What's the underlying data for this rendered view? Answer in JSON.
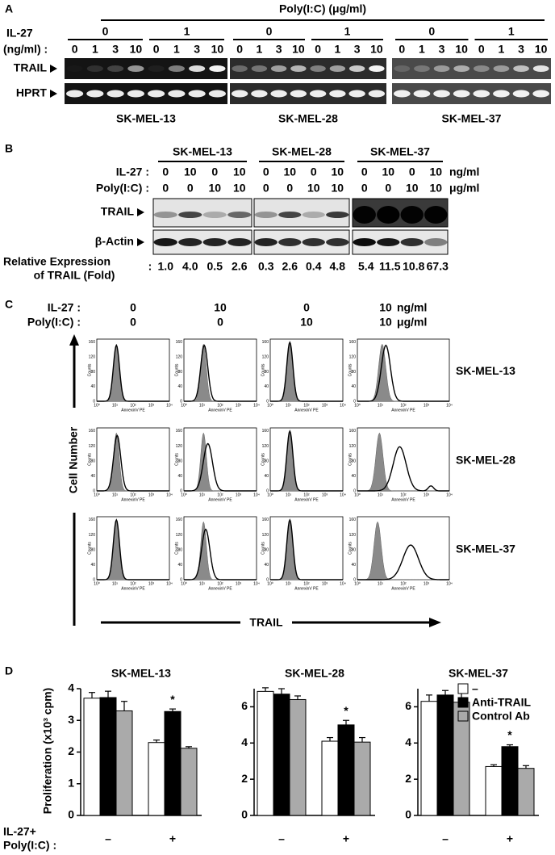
{
  "panel_a": {
    "letter": "A",
    "poly_label": "Poly(I:C) (μg/ml)",
    "il27_label": [
      "IL-27",
      "(ng/ml) :"
    ],
    "doses": [
      0,
      1,
      3,
      10
    ],
    "rows": [
      "TRAIL",
      "HPRT"
    ],
    "blots": [
      {
        "cell_line": "SK-MEL-13",
        "poly": [
          0,
          1
        ]
      },
      {
        "cell_line": "SK-MEL-28",
        "poly": [
          0,
          1
        ]
      },
      {
        "cell_line": "SK-MEL-37",
        "poly": [
          0,
          1
        ]
      }
    ]
  },
  "panel_b": {
    "letter": "B",
    "cell_lines": [
      "SK-MEL-13",
      "SK-MEL-28",
      "SK-MEL-37"
    ],
    "il27_label": "IL-27 :",
    "il27": [
      0,
      10,
      0,
      10
    ],
    "il27_unit": "ng/ml",
    "poly_label": "Poly(I:C) :",
    "poly": [
      0,
      0,
      10,
      10
    ],
    "poly_unit": "μg/ml",
    "rows": [
      "TRAIL",
      "β-Actin"
    ],
    "relative_label": [
      "Relative Expression",
      "of TRAIL (Fold)"
    ],
    "relative_colon": ":",
    "relative": [
      [
        "1.0",
        "4.0",
        "0.5",
        "2.6"
      ],
      [
        "0.3",
        "2.6",
        "0.4",
        "4.8"
      ],
      [
        "5.4",
        "11.5",
        "10.8",
        "67.3"
      ]
    ]
  },
  "panel_c": {
    "letter": "C",
    "il27_label": "IL-27 :",
    "il27": [
      0,
      10,
      0,
      10
    ],
    "il27_unit": "ng/ml",
    "poly_label": "Poly(I:C) :",
    "poly": [
      0,
      0,
      10,
      10
    ],
    "poly_unit": "μg/ml",
    "cell_lines": [
      "SK-MEL-13",
      "SK-MEL-28",
      "SK-MEL-37"
    ],
    "y_label": "Cell Number",
    "x_label": "TRAIL",
    "histogram": {
      "y_label": "Counts",
      "x_label": "AnnexinV PE",
      "yticks": [
        0,
        40,
        80,
        120,
        160
      ],
      "xticks": [
        "10⁰",
        "10¹",
        "10²",
        "10³",
        "10⁴"
      ]
    }
  },
  "panel_d": {
    "letter": "D",
    "y_label": "Proliferation (x10³ cpm)",
    "x_label": [
      "IL-27+",
      "Poly(I:C) :"
    ]
  },
  "chart_data": [
    {
      "type": "bar",
      "title": "SK-MEL-13",
      "categories": [
        "–",
        "+"
      ],
      "ylim": [
        0,
        4
      ],
      "yticks": [
        0,
        1,
        2,
        3,
        4
      ],
      "series": [
        {
          "name": "–",
          "color": "#ffffff",
          "values": [
            3.7,
            2.3
          ],
          "errors": [
            0.18,
            0.08
          ]
        },
        {
          "name": "Anti-TRAIL",
          "color": "#000000",
          "values": [
            3.72,
            3.28
          ],
          "errors": [
            0.2,
            0.08
          ],
          "markers": [
            null,
            "*"
          ]
        },
        {
          "name": "Control Ab",
          "color": "#aaaaaa",
          "values": [
            3.3,
            2.12
          ],
          "errors": [
            0.3,
            0.05
          ]
        }
      ]
    },
    {
      "type": "bar",
      "title": "SK-MEL-28",
      "categories": [
        "–",
        "+"
      ],
      "ylim": [
        0,
        7
      ],
      "yticks": [
        0,
        2,
        4,
        6
      ],
      "series": [
        {
          "name": "–",
          "color": "#ffffff",
          "values": [
            6.85,
            4.1
          ],
          "errors": [
            0.2,
            0.2
          ]
        },
        {
          "name": "Anti-TRAIL",
          "color": "#000000",
          "values": [
            6.7,
            5.0
          ],
          "errors": [
            0.3,
            0.25
          ],
          "markers": [
            null,
            "*"
          ]
        },
        {
          "name": "Control Ab",
          "color": "#aaaaaa",
          "values": [
            6.4,
            4.05
          ],
          "errors": [
            0.2,
            0.25
          ]
        }
      ]
    },
    {
      "type": "bar",
      "title": "SK-MEL-37",
      "categories": [
        "–",
        "+"
      ],
      "ylim": [
        0,
        7
      ],
      "yticks": [
        0,
        2,
        4,
        6
      ],
      "legend": "upper right",
      "series": [
        {
          "name": "–",
          "color": "#ffffff",
          "values": [
            6.3,
            2.7
          ],
          "errors": [
            0.35,
            0.1
          ]
        },
        {
          "name": "Anti-TRAIL",
          "color": "#000000",
          "values": [
            6.65,
            3.8
          ],
          "errors": [
            0.25,
            0.1
          ],
          "markers": [
            null,
            "*"
          ]
        },
        {
          "name": "Control Ab",
          "color": "#aaaaaa",
          "values": [
            6.25,
            2.6
          ],
          "errors": [
            0.7,
            0.15
          ]
        }
      ]
    }
  ]
}
